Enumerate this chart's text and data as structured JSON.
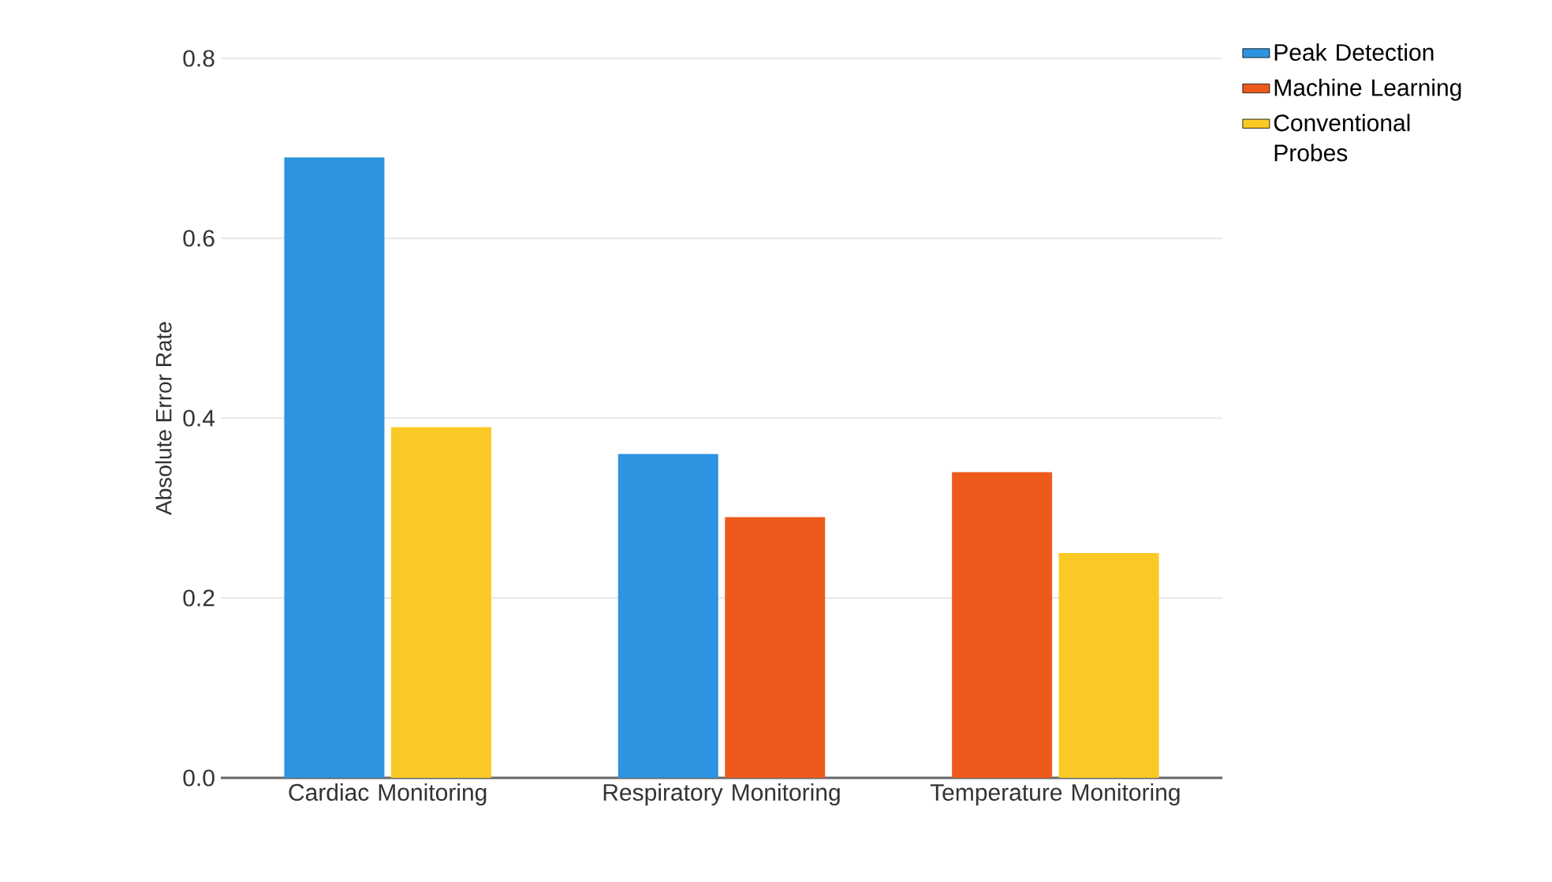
{
  "chart_data": {
    "type": "bar",
    "ylabel": "Absolute Error Rate",
    "categories": [
      "Cardiac Monitoring",
      "Respiratory Monitoring",
      "Temperature Monitoring"
    ],
    "series": [
      {
        "name": "Peak Detection",
        "color": "#2e93e0",
        "values": [
          0.69,
          0.36,
          null
        ]
      },
      {
        "name": "Machine Learning",
        "color": "#ee5a1c",
        "values": [
          null,
          0.29,
          0.34
        ]
      },
      {
        "name": "Conventional Probes",
        "color": "#fbc925",
        "values": [
          0.39,
          null,
          0.25
        ]
      }
    ],
    "ylim": [
      0,
      0.8
    ],
    "yticks": [
      {
        "value": 0,
        "label": "0.0"
      },
      {
        "value": 0.2,
        "label": "0.2"
      },
      {
        "value": 0.4,
        "label": "0.4"
      },
      {
        "value": 0.6,
        "label": "0.6"
      },
      {
        "value": 0.8,
        "label": "0.8"
      }
    ],
    "grid": "y",
    "legend": "right"
  }
}
